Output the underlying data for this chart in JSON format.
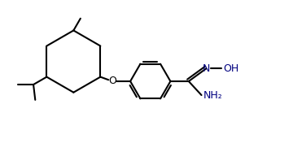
{
  "bg_color": "#ffffff",
  "line_color": "#000000",
  "navy_color": "#000080",
  "bond_lw": 1.5,
  "fig_w": 3.6,
  "fig_h": 1.87,
  "dpi": 100,
  "xlim": [
    -4.5,
    3.5
  ],
  "ylim": [
    -1.6,
    1.9
  ]
}
